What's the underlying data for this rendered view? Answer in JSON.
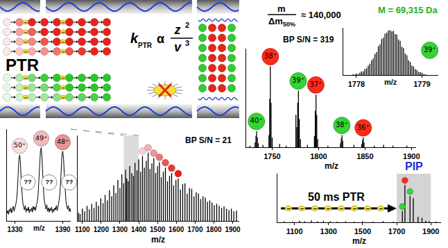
{
  "diagram": {
    "label": "PTR",
    "rate_law": {
      "k": "k",
      "k_subscript": "PTR",
      "relation": "α",
      "numerator": "z",
      "numerator_exponent": "2",
      "denominator": "v",
      "denominator_exponent": "3"
    },
    "reagent_anion": "−"
  },
  "chart_data": [
    {
      "type": "bar",
      "color": "#000000",
      "x": [
        1080,
        1088,
        1100,
        1112,
        1125,
        1137,
        1150,
        1162,
        1174,
        1186,
        1198,
        1210,
        1221,
        1233,
        1244,
        1256,
        1267,
        1278,
        1289,
        1300,
        1310,
        1320,
        1330,
        1336,
        1344,
        1352,
        1363,
        1372,
        1380,
        1391,
        1400,
        1410,
        1420,
        1430,
        1440,
        1450,
        1460,
        1470,
        1480,
        1490,
        1500,
        1510,
        1520,
        1531,
        1542,
        1553,
        1564,
        1575,
        1586,
        1598,
        1610,
        1622,
        1634,
        1646,
        1658,
        1670,
        1682,
        1694,
        1706,
        1718,
        1730,
        1742,
        1754,
        1766,
        1778,
        1790,
        1802,
        1815,
        1828,
        1841,
        1854,
        1867,
        1880,
        1893,
        1906,
        1920
      ],
      "values": [
        12,
        10,
        18,
        14,
        22,
        17,
        25,
        19,
        28,
        22,
        33,
        26,
        38,
        30,
        45,
        36,
        52,
        41,
        60,
        48,
        68,
        55,
        75,
        62,
        58,
        80,
        70,
        66,
        85,
        74,
        90,
        72,
        95,
        78,
        88,
        100,
        76,
        84,
        92,
        70,
        80,
        86,
        64,
        72,
        78,
        58,
        66,
        70,
        52,
        60,
        62,
        46,
        54,
        55,
        40,
        48,
        47,
        36,
        42,
        40,
        32,
        36,
        34,
        28,
        30,
        27,
        23,
        25,
        22,
        19,
        21,
        18,
        16,
        18,
        14,
        15
      ],
      "xlim": [
        1075,
        1935
      ],
      "xticks": [
        1100,
        1200,
        1300,
        1400,
        1500,
        1600,
        1700,
        1800,
        1900
      ],
      "ylim": [
        0,
        125
      ],
      "tick_labels": "x",
      "xlabel": "m/z",
      "annotations": [
        {
          "text": "BP S/N = 21"
        }
      ],
      "envelope_markers": {
        "x": [
          1420,
          1450,
          1480,
          1510,
          1542,
          1575,
          1610
        ],
        "colors": [
          "#f7d0d0",
          "#f3b3b3",
          "#ee9595",
          "#ea7676",
          "#e85656",
          "#e93a30",
          "#ee1f14"
        ]
      }
    },
    {
      "type": "line",
      "color": "#000000",
      "x": [
        1320,
        1321,
        1322,
        1323,
        1324,
        1325,
        1326,
        1327,
        1328,
        1329,
        1330,
        1331,
        1332,
        1333,
        1334,
        1335,
        1336,
        1337,
        1338,
        1339,
        1340,
        1341,
        1342,
        1343,
        1344,
        1345,
        1346,
        1347,
        1348,
        1349,
        1350,
        1351,
        1352,
        1353,
        1354,
        1355,
        1356,
        1357,
        1358,
        1359,
        1360,
        1361,
        1362,
        1363,
        1364,
        1365,
        1366,
        1367,
        1368,
        1369,
        1370,
        1371,
        1372,
        1373,
        1374,
        1375,
        1376,
        1377,
        1378,
        1379,
        1380,
        1381,
        1382,
        1383,
        1384,
        1385,
        1386,
        1387,
        1388,
        1389,
        1390,
        1391,
        1392,
        1393,
        1394,
        1395,
        1396,
        1397,
        1398,
        1399,
        1400
      ],
      "values": [
        10,
        14,
        9,
        16,
        12,
        18,
        11,
        15,
        20,
        13,
        17,
        22,
        28,
        40,
        62,
        84,
        90,
        78,
        52,
        33,
        24,
        19,
        15,
        21,
        12,
        17,
        14,
        19,
        11,
        16,
        13,
        18,
        12,
        20,
        15,
        19,
        14,
        22,
        26,
        35,
        50,
        74,
        95,
        100,
        86,
        60,
        38,
        27,
        20,
        16,
        22,
        13,
        18,
        12,
        17,
        14,
        19,
        11,
        16,
        13,
        18,
        15,
        21,
        14,
        19,
        24,
        32,
        46,
        70,
        90,
        95,
        85,
        62,
        40,
        27,
        20,
        16,
        21,
        13,
        17,
        12
      ],
      "xlim": [
        1320,
        1400
      ],
      "xticks": [
        1330,
        1390
      ],
      "ylim": [
        0,
        125
      ],
      "tick_labels": "x",
      "xlabel": "m/z",
      "charge_states": [
        {
          "label": "50⁺",
          "x": 1336,
          "color": "#f9dede"
        },
        {
          "label": "49⁺",
          "x": 1363,
          "color": "#f2baba"
        },
        {
          "label": "48⁺",
          "x": 1390,
          "color": "#e99494"
        }
      ],
      "unknown_labels": [
        {
          "label": "??",
          "x": 1346
        },
        {
          "label": "??",
          "x": 1373
        },
        {
          "label": "??",
          "x": 1398
        }
      ]
    },
    {
      "type": "bar",
      "color": "#000000",
      "x": [
        1726,
        1731.5,
        1732.5,
        1733.2,
        1734,
        1735,
        1740,
        1746.5,
        1747.3,
        1748,
        1748.8,
        1750,
        1758,
        1765,
        1775.5,
        1776.5,
        1777.5,
        1778.3,
        1779.2,
        1780.5,
        1788,
        1795.5,
        1796.4,
        1797.2,
        1798,
        1799,
        1810,
        1823.5,
        1824.4,
        1825.2,
        1826,
        1838,
        1846.5,
        1847.3,
        1848.1,
        1849,
        1860,
        1870,
        1880,
        1895
      ],
      "values": [
        2,
        6,
        14,
        20,
        12,
        5,
        3,
        15,
        60,
        100,
        55,
        12,
        4,
        2,
        40,
        25,
        55,
        70,
        35,
        10,
        3,
        14,
        45,
        65,
        40,
        10,
        2,
        5,
        11,
        15,
        8,
        3,
        4,
        9,
        12,
        6,
        2,
        3,
        2,
        2
      ],
      "xlim": [
        1722,
        1905
      ],
      "xticks": [
        1750,
        1800,
        1850,
        1900
      ],
      "ylim": [
        0,
        122
      ],
      "tick_labels": "x",
      "xlabel": "m/z",
      "annotations": [
        {
          "text": "BP S/N = 319"
        }
      ],
      "charge_states": [
        {
          "label": "40⁺",
          "x": 1733,
          "color": "#35d435"
        },
        {
          "label": "38⁺",
          "x": 1748,
          "color": "#ff2a1a"
        },
        {
          "label": "39⁺",
          "x": 1778,
          "color": "#35d435"
        },
        {
          "label": "37⁺",
          "x": 1797,
          "color": "#ff2a1a"
        },
        {
          "label": "38⁺",
          "x": 1825,
          "color": "#35d435"
        },
        {
          "label": "36⁺",
          "x": 1848,
          "color": "#ff2a1a"
        }
      ]
    },
    {
      "type": "bar",
      "color": "#000000",
      "x": [
        1777.95,
        1777.976,
        1778.001,
        1778.027,
        1778.053,
        1778.078,
        1778.104,
        1778.129,
        1778.155,
        1778.181,
        1778.206,
        1778.232,
        1778.258,
        1778.283,
        1778.309,
        1778.335,
        1778.36,
        1778.386,
        1778.412,
        1778.437,
        1778.463,
        1778.488,
        1778.514,
        1778.54,
        1778.565,
        1778.591,
        1778.617,
        1778.642,
        1778.668,
        1778.694,
        1778.719,
        1778.745,
        1778.771,
        1778.796,
        1778.822,
        1778.847,
        1778.873,
        1778.899,
        1778.924,
        1778.95,
        1778.976,
        1779.001,
        1779.027,
        1779.053
      ],
      "values": [
        2,
        1,
        3,
        2,
        5,
        8,
        8,
        13,
        15,
        21,
        25,
        33,
        37,
        47,
        51,
        64,
        68,
        80,
        83,
        92,
        94,
        99,
        100,
        97,
        98,
        91,
        90,
        79,
        76,
        63,
        60,
        48,
        44,
        33,
        29,
        21,
        19,
        13,
        11,
        7,
        6,
        5,
        2,
        2
      ],
      "xlim": [
        1777.8,
        1779.25
      ],
      "xticks": [
        1778,
        1779
      ],
      "ylim": [
        0,
        105
      ],
      "tick_labels": "x",
      "xlabel": "m/z",
      "annotations": [
        {
          "text": "M = 69,315 Da",
          "color": "#22b022"
        }
      ],
      "resolving_power": {
        "numerator": "m",
        "denominator": "Δm",
        "denominator_subscript": "50%",
        "relation": "≈",
        "value": "140,000"
      },
      "charge_states": [
        {
          "label": "39⁺",
          "x": 1779.12,
          "y": 55,
          "color": "#35d435"
        }
      ]
    },
    {
      "type": "bar",
      "color": "#000000",
      "x": [
        1040,
        1090,
        1130,
        1160,
        1200,
        1235,
        1270,
        1310,
        1350,
        1400,
        1450,
        1500,
        1560,
        1620,
        1680,
        1733,
        1748,
        1778,
        1797,
        1825,
        1848,
        1870,
        1890,
        1930
      ],
      "values": [
        3,
        2,
        4,
        3,
        5,
        3,
        4,
        3,
        2,
        3,
        2,
        3,
        2,
        3,
        2,
        30,
        100,
        70,
        65,
        15,
        12,
        4,
        3,
        2
      ],
      "xlim": [
        1000,
        1960
      ],
      "xticks": [
        1100,
        1300,
        1500,
        1700,
        1900
      ],
      "ylim": [
        0,
        130
      ],
      "tick_labels": "x",
      "xlabel": "m/z",
      "annotations": [
        {
          "text": "50 ms PTR"
        }
      ],
      "highlight": {
        "label": "PIP",
        "range": [
          1700,
          1900
        ],
        "color": "#1a2fd0"
      },
      "markers": {
        "x": [
          1733,
          1748,
          1778
        ],
        "colors": [
          "#35d435",
          "#ff2a1a",
          "#35d435"
        ]
      }
    }
  ]
}
